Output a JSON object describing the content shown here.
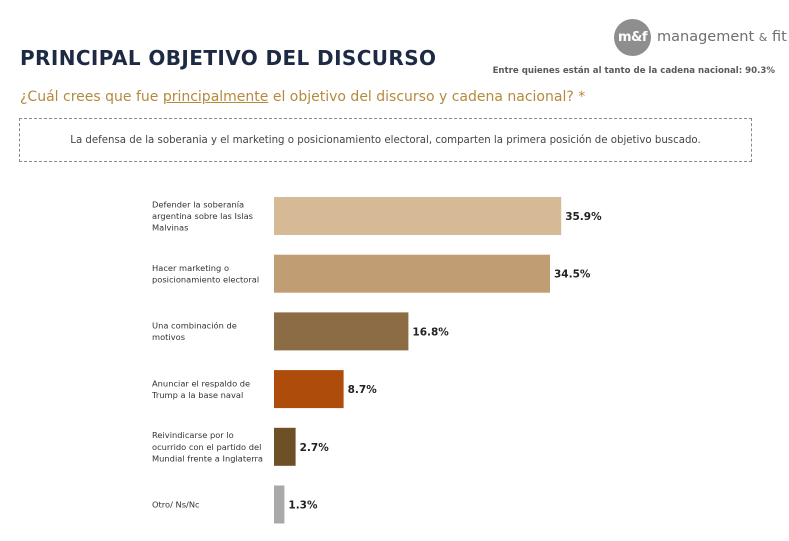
{
  "header": {
    "title": "PRINCIPAL OBJETIVO DEL DISCURSO",
    "logo_mark": "m&f",
    "logo_text_main": "management",
    "logo_text_amp": "&",
    "logo_text_end": "fit",
    "note": "Entre quienes están al tanto de la cadena nacional: 90.3%"
  },
  "question": {
    "prefix": "¿Cuál crees que fue ",
    "underlined": "principalmente",
    "suffix": " el objetivo del discurso y cadena nacional? *"
  },
  "callout": "La defensa de la soberania y el marketing o posicionamiento electoral, comparten la primera posición de objetivo buscado.",
  "chart_data": {
    "type": "bar",
    "orientation": "horizontal",
    "categories": [
      [
        "Defender la soberanía",
        "argentina sobre las Islas",
        "Malvinas"
      ],
      [
        "Hacer marketing o",
        "posicionamiento electoral"
      ],
      [
        "Una combinación de",
        "motivos"
      ],
      [
        "Anunciar el respaldo de",
        "Trump a la base naval"
      ],
      [
        "Reivindicarse por lo",
        "ocurrido con el partido del",
        "Mundial frente a Inglaterra"
      ],
      [
        "Otro/ Ns/Nc"
      ]
    ],
    "values": [
      35.9,
      34.5,
      16.8,
      8.7,
      2.7,
      1.3
    ],
    "value_labels": [
      "35.9%",
      "34.5%",
      "16.8%",
      "8.7%",
      "2.7%",
      "1.3%"
    ],
    "colors": [
      "#d6b995",
      "#c09d72",
      "#8c6c44",
      "#ae4c0c",
      "#6e5026",
      "#a9a9a9"
    ],
    "grid": false,
    "legend": "none"
  }
}
